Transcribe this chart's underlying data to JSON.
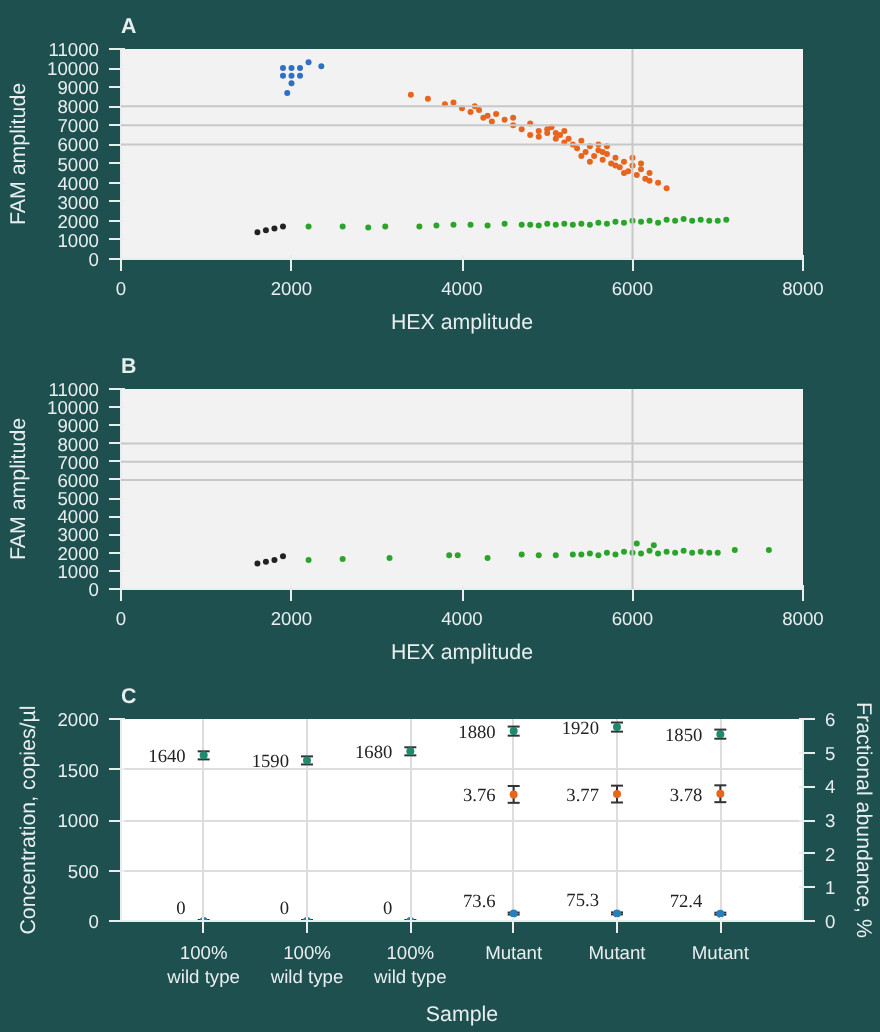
{
  "chart_data": [
    {
      "type": "scatter",
      "title": "A",
      "xlabel": "HEX amplitude",
      "ylabel": "FAM amplitude",
      "xlim": [
        0,
        8000
      ],
      "xticks": [
        0,
        2000,
        4000,
        6000,
        8000
      ],
      "ylim": [
        0,
        11000
      ],
      "yticks": [
        0,
        1000,
        2000,
        3000,
        4000,
        5000,
        6000,
        7000,
        8000,
        9000,
        10000,
        11000
      ],
      "grid": false,
      "marker": "circle",
      "ref_lines": [
        {
          "axis": "x",
          "value": 6000,
          "color": "#c8c8c8"
        },
        {
          "axis": "y",
          "value": 6000,
          "color": "#c8c8c8"
        },
        {
          "axis": "y",
          "value": 7000,
          "color": "#c8c8c8"
        },
        {
          "axis": "y",
          "value": 8000,
          "color": "#c8c8c8"
        }
      ],
      "series": [
        {
          "color": "#2f6fc4",
          "x": [
            1900,
            1900,
            2000,
            2000,
            2000,
            2100,
            2100,
            2200,
            2350,
            1950
          ],
          "values": [
            9600,
            10000,
            9200,
            9600,
            10000,
            9600,
            10000,
            10300,
            10100,
            8700
          ]
        },
        {
          "color": "#e8651e",
          "x": [
            3400,
            3600,
            3800,
            4000,
            4100,
            4200,
            4300,
            4400,
            4500,
            4600,
            4700,
            4800,
            4900,
            5000,
            5050,
            5100,
            5150,
            5200,
            5300,
            5350,
            5400,
            5450,
            5500,
            5550,
            5600,
            5650,
            5700,
            5750,
            5800,
            5850,
            5900,
            5950,
            6000,
            6050,
            6100,
            6150,
            6200,
            6300,
            6400,
            4150,
            4350,
            4600,
            4900,
            5000,
            5200,
            5400,
            5600,
            5800,
            6000,
            6200,
            5100,
            5500,
            5700,
            5900,
            4250,
            4800,
            5250,
            5650,
            6100,
            3900
          ],
          "values": [
            8600,
            8400,
            8100,
            7900,
            7700,
            7800,
            7500,
            7600,
            7300,
            7000,
            6800,
            7100,
            6700,
            6600,
            6900,
            6300,
            6500,
            6100,
            6000,
            5800,
            6200,
            5600,
            5900,
            5400,
            5700,
            5200,
            5500,
            5000,
            5300,
            4800,
            5100,
            4600,
            4900,
            4400,
            4700,
            4200,
            4500,
            4000,
            3700,
            8000,
            7200,
            7400,
            6400,
            6800,
            6700,
            5400,
            6000,
            4900,
            5300,
            4100,
            6600,
            5100,
            5900,
            4500,
            7400,
            6500,
            6300,
            5600,
            5000,
            8200
          ]
        },
        {
          "color": "#222222",
          "x": [
            1600,
            1700,
            1800,
            1900
          ],
          "values": [
            1400,
            1500,
            1600,
            1700
          ]
        },
        {
          "color": "#2aa52a",
          "x": [
            2200,
            2600,
            2900,
            3100,
            3500,
            3700,
            3900,
            4100,
            4300,
            4500,
            4700,
            4800,
            4900,
            5000,
            5100,
            5200,
            5300,
            5400,
            5500,
            5600,
            5700,
            5800,
            5900,
            6000,
            6100,
            6200,
            6300,
            6400,
            6500,
            6600,
            6700,
            6800,
            6900,
            7000,
            7100
          ],
          "values": [
            1700,
            1700,
            1650,
            1700,
            1700,
            1750,
            1800,
            1800,
            1750,
            1850,
            1800,
            1800,
            1750,
            1850,
            1800,
            1850,
            1800,
            1850,
            1800,
            1900,
            1850,
            1950,
            1900,
            2000,
            1950,
            2000,
            1900,
            2050,
            2000,
            2100,
            2000,
            2050,
            2000,
            2000,
            2050
          ]
        }
      ]
    },
    {
      "type": "scatter",
      "title": "B",
      "xlabel": "HEX amplitude",
      "ylabel": "FAM amplitude",
      "xlim": [
        0,
        8000
      ],
      "xticks": [
        0,
        2000,
        4000,
        6000,
        8000
      ],
      "ylim": [
        0,
        11000
      ],
      "yticks": [
        0,
        1000,
        2000,
        3000,
        4000,
        5000,
        6000,
        7000,
        8000,
        9000,
        10000,
        11000
      ],
      "grid": false,
      "marker": "circle",
      "ref_lines": [
        {
          "axis": "x",
          "value": 6000,
          "color": "#c8c8c8"
        },
        {
          "axis": "y",
          "value": 6000,
          "color": "#c8c8c8"
        },
        {
          "axis": "y",
          "value": 7000,
          "color": "#c8c8c8"
        },
        {
          "axis": "y",
          "value": 8000,
          "color": "#c8c8c8"
        }
      ],
      "series": [
        {
          "color": "#222222",
          "x": [
            1600,
            1700,
            1800,
            1900
          ],
          "values": [
            1400,
            1500,
            1600,
            1800
          ]
        },
        {
          "color": "#2aa52a",
          "x": [
            2200,
            2600,
            3150,
            3850,
            3950,
            4300,
            4700,
            4900,
            5100,
            5300,
            5400,
            5500,
            5600,
            5700,
            5800,
            5900,
            6000,
            6100,
            6200,
            6300,
            6400,
            6500,
            6600,
            6700,
            6800,
            6900,
            7000,
            6050,
            6250,
            7200,
            7600
          ],
          "values": [
            1600,
            1650,
            1700,
            1850,
            1850,
            1700,
            1900,
            1850,
            1850,
            1900,
            1900,
            1950,
            1850,
            2000,
            1900,
            2050,
            2000,
            1950,
            2100,
            1950,
            2050,
            2000,
            2100,
            2000,
            2050,
            2000,
            2000,
            2500,
            2400,
            2150,
            2150
          ]
        }
      ]
    },
    {
      "type": "scatter",
      "title": "C",
      "xlabel": "Sample",
      "ylabel": "Concentration, copies/µl",
      "y2label": "Fractional abundance, %",
      "categories": [
        "100%\nwild type",
        "100%\nwild type",
        "100%\nwild type",
        "Mutant",
        "Mutant",
        "Mutant"
      ],
      "ylim": [
        0,
        2000
      ],
      "yticks": [
        0,
        500,
        1000,
        1500,
        2000
      ],
      "y2lim": [
        0,
        6
      ],
      "y2ticks": [
        0,
        1,
        2,
        3,
        4,
        5,
        6
      ],
      "grid": true,
      "marker": "circle",
      "data_labels": true,
      "series": [
        {
          "color": "#1e8a6e",
          "values": [
            1640,
            1590,
            1680,
            1880,
            1920,
            1850
          ],
          "errors": [
            40,
            40,
            40,
            45,
            45,
            45
          ]
        },
        {
          "color": "#e8651e",
          "axis": "y2",
          "values": [
            null,
            null,
            null,
            3.76,
            3.77,
            3.78
          ],
          "errors": [
            null,
            null,
            null,
            0.25,
            0.25,
            0.25
          ]
        },
        {
          "color": "#2a7fb8",
          "values": [
            0,
            0,
            0,
            73.6,
            75.3,
            72.4
          ],
          "errors": [
            10,
            10,
            10,
            10,
            10,
            10
          ]
        }
      ]
    }
  ]
}
